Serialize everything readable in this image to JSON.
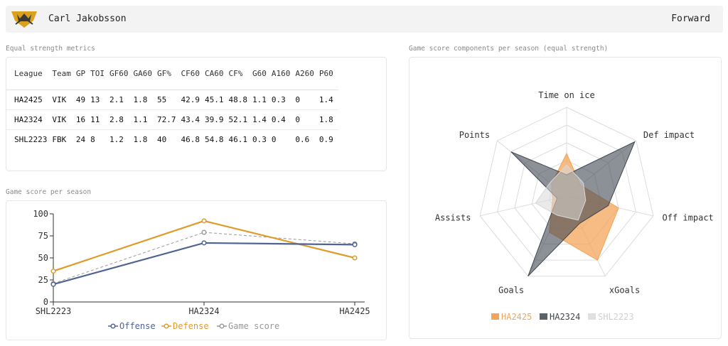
{
  "header": {
    "player_name": "Carl Jakobsson",
    "position": "Forward",
    "logo_colors": {
      "gold": "#d9a11d",
      "dark": "#3a3a3a"
    }
  },
  "metrics": {
    "title": "Equal strength metrics",
    "columns": [
      "League",
      "Team",
      "GP",
      "TOI",
      "GF60",
      "GA60",
      "GF%",
      "CF60",
      "CA60",
      "CF%",
      "G60",
      "A160",
      "A260",
      "P60"
    ],
    "rows": [
      [
        "HA2425",
        "VIK",
        "49",
        "13",
        "2.1",
        "1.8",
        "55",
        "42.9",
        "45.1",
        "48.8",
        "1.1",
        "0.3",
        "0",
        "1.4"
      ],
      [
        "HA2324",
        "VIK",
        "16",
        "11",
        "2.8",
        "1.1",
        "72.7",
        "43.4",
        "39.9",
        "52.1",
        "1.4",
        "0.4",
        "0",
        "1.8"
      ],
      [
        "SHL2223",
        "FBK",
        "24",
        "8",
        "1.2",
        "1.8",
        "40",
        "46.8",
        "54.8",
        "46.1",
        "0.3",
        "0",
        "0.6",
        "0.9"
      ]
    ]
  },
  "line_chart_title": "Game score per season",
  "radar_chart_title": "Game score components per season (equal strength)",
  "chart_data": [
    {
      "type": "line",
      "x": [
        "SHL2223",
        "HA2324",
        "HA2425"
      ],
      "ylim": [
        0,
        100
      ],
      "yticks": [
        0,
        25,
        50,
        75,
        100
      ],
      "grid": false,
      "legend": "bottom",
      "series": [
        {
          "name": "Offense",
          "values": [
            20,
            67,
            65
          ],
          "color": "#4e6494",
          "style": "solid"
        },
        {
          "name": "Defense",
          "values": [
            35,
            92,
            50
          ],
          "color": "#e09b2d",
          "style": "solid"
        },
        {
          "name": "Game score",
          "values": [
            21,
            79,
            66
          ],
          "color": "#999999",
          "style": "dashed"
        }
      ]
    },
    {
      "type": "radar",
      "axes": [
        "Time on ice",
        "Def impact",
        "Off impact",
        "xGoals",
        "Goals",
        "Assists",
        "Points"
      ],
      "range": [
        0,
        100
      ],
      "rings": 5,
      "legend": "bottom",
      "series": [
        {
          "name": "HA2425",
          "values": [
            48,
            20,
            60,
            80,
            45,
            16,
            22
          ],
          "color": "#f4a55a",
          "opacity": 0.75
        },
        {
          "name": "HA2324",
          "values": [
            24,
            98,
            48,
            34,
            100,
            11,
            80
          ],
          "color": "#404651",
          "opacity": 0.6
        },
        {
          "name": "SHL2223",
          "values": [
            35,
            24,
            22,
            30,
            24,
            36,
            24
          ],
          "color": "#d8d8d8",
          "opacity": 0.55
        }
      ]
    }
  ]
}
